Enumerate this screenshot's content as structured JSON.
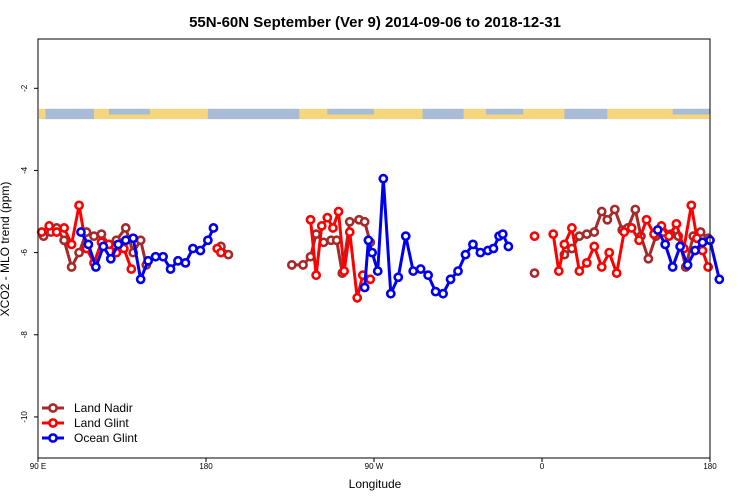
{
  "chart_data": {
    "type": "line",
    "title": "55N-60N September (Ver 9)   2014-09-06 to 2018-12-31",
    "xlabel": "Longitude",
    "ylabel": "XCO2 - MLO trend (ppm)",
    "xlim": [
      90,
      450
    ],
    "ylim": [
      -11,
      -0.8
    ],
    "x_ticks": [
      {
        "value": 90,
        "label": "90 E"
      },
      {
        "value": 180,
        "label": "180"
      },
      {
        "value": 270,
        "label": "90 W"
      },
      {
        "value": 360,
        "label": "0"
      },
      {
        "value": 450,
        "label": "180"
      }
    ],
    "y_ticks": [
      {
        "value": -2,
        "label": "-2"
      },
      {
        "value": -4,
        "label": "-4"
      },
      {
        "value": -6,
        "label": "-6"
      },
      {
        "value": -8,
        "label": "-8"
      },
      {
        "value": -10,
        "label": "-10"
      }
    ],
    "land_band": {
      "y_top": -2.5,
      "y_bottom": -2.75,
      "ocean_color": "#a8bcd8",
      "land_color": "#f5d67e"
    },
    "legend_position": "bottom-left",
    "series": [
      {
        "name": "Land Nadir",
        "color": "#a52a2a",
        "points": [
          [
            93,
            -5.6
          ],
          [
            97,
            -5.5
          ],
          [
            100,
            -5.4
          ],
          [
            104,
            -5.7
          ],
          [
            108,
            -6.35
          ],
          [
            112,
            -6.0
          ],
          [
            116,
            -5.5
          ],
          [
            120,
            -5.6
          ],
          [
            124,
            -5.55
          ],
          [
            128,
            -5.8
          ],
          [
            132,
            -5.7
          ],
          [
            137,
            -5.4
          ],
          [
            141,
            -6.0
          ],
          [
            145,
            -5.7
          ],
          [
            148,
            -6.3
          ],
          [
            180,
            null
          ],
          [
            188,
            -5.85
          ],
          [
            192,
            -6.05
          ],
          [
            200,
            null
          ],
          [
            226,
            -6.3
          ],
          [
            232,
            -6.3
          ],
          [
            236,
            -6.1
          ],
          [
            239,
            -5.55
          ],
          [
            243,
            -5.75
          ],
          [
            247,
            -5.7
          ],
          [
            250,
            -5.7
          ],
          [
            253,
            -6.5
          ],
          [
            257,
            -5.25
          ],
          [
            262,
            -5.2
          ],
          [
            265,
            -5.25
          ],
          [
            268,
            -5.75
          ],
          [
            272,
            null
          ],
          [
            356,
            -6.5
          ],
          [
            360,
            null
          ],
          [
            372,
            -6.05
          ],
          [
            376,
            -5.9
          ],
          [
            380,
            -5.6
          ],
          [
            384,
            -5.55
          ],
          [
            388,
            -5.5
          ],
          [
            392,
            -5.0
          ],
          [
            395,
            -5.2
          ],
          [
            399,
            -4.95
          ],
          [
            403,
            -5.45
          ],
          [
            406,
            -5.4
          ],
          [
            410,
            -4.95
          ],
          [
            413,
            -5.6
          ],
          [
            417,
            -6.15
          ],
          [
            421,
            -5.6
          ],
          [
            425,
            -5.5
          ],
          [
            429,
            -5.55
          ],
          [
            433,
            -5.6
          ],
          [
            437,
            -6.35
          ],
          [
            441,
            -5.6
          ],
          [
            445,
            -5.5
          ],
          [
            449,
            -5.65
          ]
        ]
      },
      {
        "name": "Land Glint",
        "color": "#ff0000",
        "points": [
          [
            92,
            -5.5
          ],
          [
            96,
            -5.35
          ],
          [
            100,
            -5.5
          ],
          [
            104,
            -5.4
          ],
          [
            108,
            -5.8
          ],
          [
            112,
            -4.85
          ],
          [
            116,
            -5.9
          ],
          [
            120,
            -6.25
          ],
          [
            124,
            -5.75
          ],
          [
            128,
            -5.8
          ],
          [
            132,
            -6.0
          ],
          [
            136,
            -5.9
          ],
          [
            140,
            -6.4
          ],
          [
            180,
            null
          ],
          [
            186,
            -5.9
          ],
          [
            188,
            -6.0
          ],
          [
            200,
            null
          ],
          [
            236,
            -5.2
          ],
          [
            239,
            -6.55
          ],
          [
            242,
            -5.35
          ],
          [
            245,
            -5.15
          ],
          [
            248,
            -5.4
          ],
          [
            251,
            -5.0
          ],
          [
            254,
            -6.45
          ],
          [
            257,
            -5.5
          ],
          [
            261,
            -7.1
          ],
          [
            264,
            -6.55
          ],
          [
            268,
            -6.65
          ],
          [
            272,
            null
          ],
          [
            356,
            -5.6
          ],
          [
            360,
            null
          ],
          [
            366,
            -5.55
          ],
          [
            369,
            -6.45
          ],
          [
            372,
            -5.8
          ],
          [
            376,
            -5.4
          ],
          [
            380,
            -6.45
          ],
          [
            384,
            -6.25
          ],
          [
            388,
            -5.85
          ],
          [
            392,
            -6.35
          ],
          [
            396,
            -6.0
          ],
          [
            400,
            -6.5
          ],
          [
            404,
            -5.5
          ],
          [
            408,
            -5.4
          ],
          [
            412,
            -5.7
          ],
          [
            416,
            -5.2
          ],
          [
            420,
            -5.55
          ],
          [
            424,
            -5.35
          ],
          [
            428,
            -5.6
          ],
          [
            432,
            -5.3
          ],
          [
            436,
            -5.9
          ],
          [
            440,
            -4.85
          ],
          [
            443,
            -5.65
          ],
          [
            446,
            -5.95
          ],
          [
            449,
            -6.35
          ]
        ]
      },
      {
        "name": "Ocean Glint",
        "color": "#0000ee",
        "points": [
          [
            113,
            -5.5
          ],
          [
            117,
            -5.8
          ],
          [
            121,
            -6.35
          ],
          [
            125,
            -5.85
          ],
          [
            129,
            -6.15
          ],
          [
            133,
            -5.8
          ],
          [
            137,
            -5.7
          ],
          [
            141,
            -5.65
          ],
          [
            145,
            -6.65
          ],
          [
            149,
            -6.2
          ],
          [
            153,
            -6.1
          ],
          [
            157,
            -6.1
          ],
          [
            161,
            -6.4
          ],
          [
            165,
            -6.2
          ],
          [
            169,
            -6.25
          ],
          [
            173,
            -5.9
          ],
          [
            177,
            -5.95
          ],
          [
            181,
            -5.7
          ],
          [
            184,
            -5.4
          ],
          [
            188,
            null
          ],
          [
            265,
            -6.85
          ],
          [
            267,
            -5.7
          ],
          [
            269,
            -6.0
          ],
          [
            272,
            -6.45
          ],
          [
            275,
            -4.2
          ],
          [
            279,
            -7.0
          ],
          [
            283,
            -6.6
          ],
          [
            287,
            -5.6
          ],
          [
            291,
            -6.45
          ],
          [
            295,
            -6.4
          ],
          [
            299,
            -6.55
          ],
          [
            303,
            -6.95
          ],
          [
            307,
            -7.0
          ],
          [
            311,
            -6.65
          ],
          [
            315,
            -6.45
          ],
          [
            319,
            -6.05
          ],
          [
            323,
            -5.8
          ],
          [
            327,
            -6.0
          ],
          [
            331,
            -5.95
          ],
          [
            334,
            -5.9
          ],
          [
            337,
            -5.6
          ],
          [
            339,
            -5.55
          ],
          [
            342,
            -5.85
          ],
          [
            348,
            null
          ],
          [
            422,
            -5.45
          ],
          [
            426,
            -5.8
          ],
          [
            430,
            -6.35
          ],
          [
            434,
            -5.85
          ],
          [
            438,
            -6.3
          ],
          [
            442,
            -5.95
          ],
          [
            446,
            -5.75
          ],
          [
            450,
            -5.7
          ],
          [
            455,
            -6.65
          ]
        ]
      }
    ]
  }
}
